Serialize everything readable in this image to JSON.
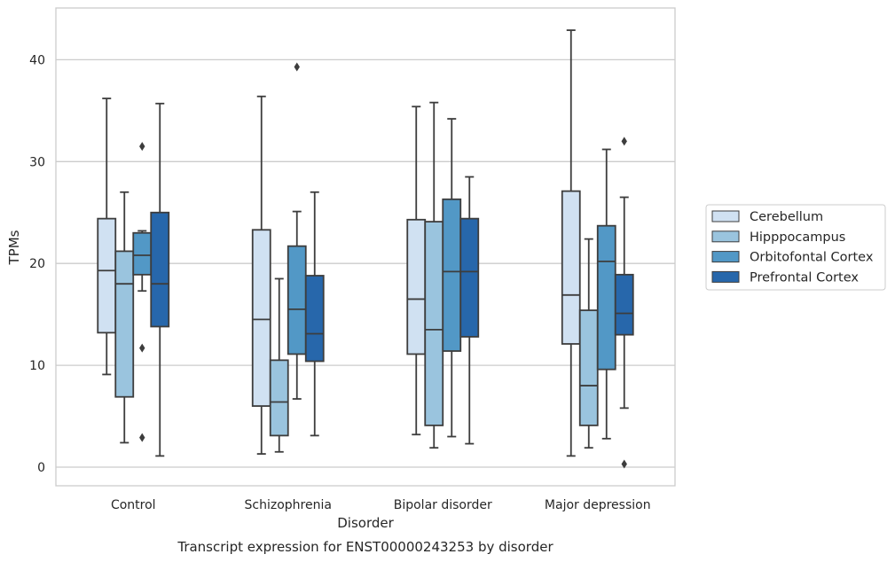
{
  "chart_data": {
    "type": "boxplot",
    "title": "Transcript expression for ENST00000243253 by disorder",
    "xlabel": "Disorder",
    "ylabel": "TPMs",
    "categories": [
      "Control",
      "Schizophrenia",
      "Bipolar disorder",
      "Major depression"
    ],
    "ylim": [
      -1.8,
      45
    ],
    "yticks": [
      0,
      10,
      20,
      30,
      40
    ],
    "grid": "horizontal",
    "legend_position": "right",
    "series": [
      {
        "name": "Cerebellum",
        "color": "#d0e1f2",
        "boxes": [
          {
            "whislo": 9.1,
            "q1": 13.2,
            "med": 19.3,
            "q3": 24.4,
            "whishi": 36.2,
            "fliers": []
          },
          {
            "whislo": 1.3,
            "q1": 6.0,
            "med": 14.5,
            "q3": 23.3,
            "whishi": 36.4,
            "fliers": []
          },
          {
            "whislo": 3.2,
            "q1": 11.1,
            "med": 16.5,
            "q3": 24.3,
            "whishi": 35.4,
            "fliers": []
          },
          {
            "whislo": 1.1,
            "q1": 12.1,
            "med": 16.9,
            "q3": 27.1,
            "whishi": 42.9,
            "fliers": []
          }
        ]
      },
      {
        "name": "Hipppocampus",
        "color": "#9ac4de",
        "boxes": [
          {
            "whislo": 2.4,
            "q1": 6.9,
            "med": 18.0,
            "q3": 21.2,
            "whishi": 27.0,
            "fliers": []
          },
          {
            "whislo": 1.5,
            "q1": 3.1,
            "med": 6.4,
            "q3": 10.5,
            "whishi": 18.5,
            "fliers": []
          },
          {
            "whislo": 1.9,
            "q1": 4.1,
            "med": 13.5,
            "q3": 24.1,
            "whishi": 35.8,
            "fliers": []
          },
          {
            "whislo": 1.9,
            "q1": 4.1,
            "med": 8.0,
            "q3": 15.4,
            "whishi": 22.4,
            "fliers": []
          }
        ]
      },
      {
        "name": "Orbitofontal Cortex",
        "color": "#5298c6",
        "boxes": [
          {
            "whislo": 17.3,
            "q1": 18.9,
            "med": 20.8,
            "q3": 23.0,
            "whishi": 23.2,
            "fliers": [
              31.5,
              11.7,
              2.9
            ]
          },
          {
            "whislo": 6.7,
            "q1": 11.1,
            "med": 15.5,
            "q3": 21.7,
            "whishi": 25.1,
            "fliers": [
              39.3
            ]
          },
          {
            "whislo": 3.0,
            "q1": 11.4,
            "med": 19.2,
            "q3": 26.3,
            "whishi": 34.2,
            "fliers": []
          },
          {
            "whislo": 2.8,
            "q1": 9.6,
            "med": 20.2,
            "q3": 23.7,
            "whishi": 31.2,
            "fliers": []
          }
        ]
      },
      {
        "name": "Prefrontal Cortex",
        "color": "#2767ab",
        "boxes": [
          {
            "whislo": 1.1,
            "q1": 13.8,
            "med": 18.0,
            "q3": 25.0,
            "whishi": 35.7,
            "fliers": []
          },
          {
            "whislo": 3.1,
            "q1": 10.4,
            "med": 13.1,
            "q3": 18.8,
            "whishi": 27.0,
            "fliers": []
          },
          {
            "whislo": 2.3,
            "q1": 12.8,
            "med": 19.2,
            "q3": 24.4,
            "whishi": 28.5,
            "fliers": []
          },
          {
            "whislo": 5.8,
            "q1": 13.0,
            "med": 15.1,
            "q3": 18.9,
            "whishi": 26.5,
            "fliers": [
              32.0,
              0.3
            ]
          }
        ]
      }
    ]
  }
}
